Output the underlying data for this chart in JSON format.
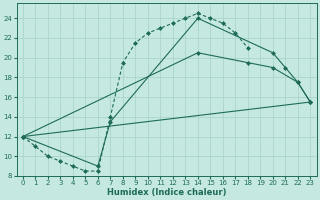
{
  "xlabel": "Humidex (Indice chaleur)",
  "bg_color": "#c5e8e0",
  "line_color": "#1e6b5a",
  "grid_color": "#aad4cc",
  "xlim": [
    -0.5,
    23.5
  ],
  "ylim": [
    8,
    25.5
  ],
  "xticks": [
    0,
    1,
    2,
    3,
    4,
    5,
    6,
    7,
    8,
    9,
    10,
    11,
    12,
    13,
    14,
    15,
    16,
    17,
    18,
    19,
    20,
    21,
    22,
    23
  ],
  "yticks": [
    8,
    10,
    12,
    14,
    16,
    18,
    20,
    22,
    24
  ],
  "line1_x": [
    0,
    1,
    2,
    3,
    4,
    5,
    6,
    7,
    8,
    9,
    10,
    11,
    12,
    13,
    14,
    15,
    16,
    17,
    18
  ],
  "line1_y": [
    12,
    11,
    10,
    9.5,
    9,
    8.5,
    8.5,
    14,
    19.5,
    21.5,
    22.5,
    23,
    23.5,
    24,
    24.5,
    24,
    23.5,
    22.5,
    21
  ],
  "line2_x": [
    0,
    23
  ],
  "line2_y": [
    12,
    15.5
  ],
  "line3_x": [
    0,
    6,
    7,
    14,
    20,
    21,
    22,
    23
  ],
  "line3_y": [
    12,
    9,
    13.5,
    24,
    20.5,
    19,
    17.5,
    15.5
  ],
  "line4_x": [
    0,
    14,
    18,
    20,
    22,
    23
  ],
  "line4_y": [
    12,
    20.5,
    19.5,
    19,
    17.5,
    15.5
  ]
}
